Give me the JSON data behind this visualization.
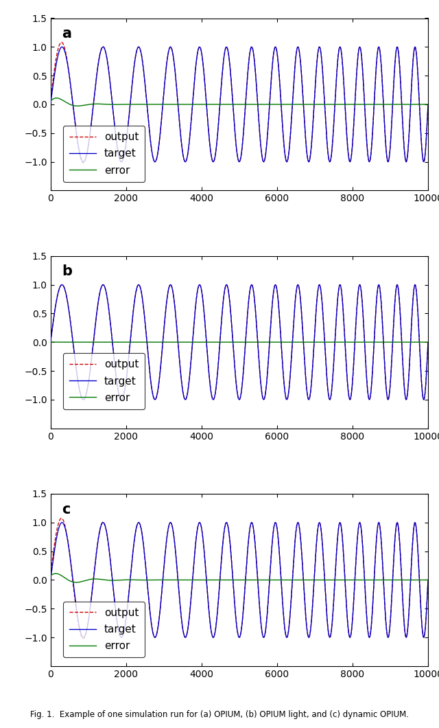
{
  "n_points": 10001,
  "x_max": 10000,
  "ylim": [
    -1.5,
    1.5
  ],
  "yticks": [
    -1.0,
    -0.5,
    0.0,
    0.5,
    1.0,
    1.5
  ],
  "xticks": [
    0,
    2000,
    4000,
    6000,
    8000,
    10000
  ],
  "panel_labels": [
    "a",
    "b",
    "c"
  ],
  "legend_labels": [
    "target",
    "output",
    "error"
  ],
  "target_color": "#0000cc",
  "output_color": "#cc0000",
  "error_color": "#007700",
  "line_width": 1.0,
  "fig_caption": "Fig. 1.  Example of one simulation run for (a) OPIUM, (b) OPIUM light, and (c) dynamic OPIUM.",
  "freq_start_hz": 0.0008,
  "freq_end_hz": 0.0022,
  "error_amplitude_a": 0.18,
  "error_decay_a": 0.0025,
  "error_amplitude_b": 0.005,
  "error_decay_b": 0.01,
  "error_amplitude_c": 0.15,
  "error_decay_c": 0.0018
}
